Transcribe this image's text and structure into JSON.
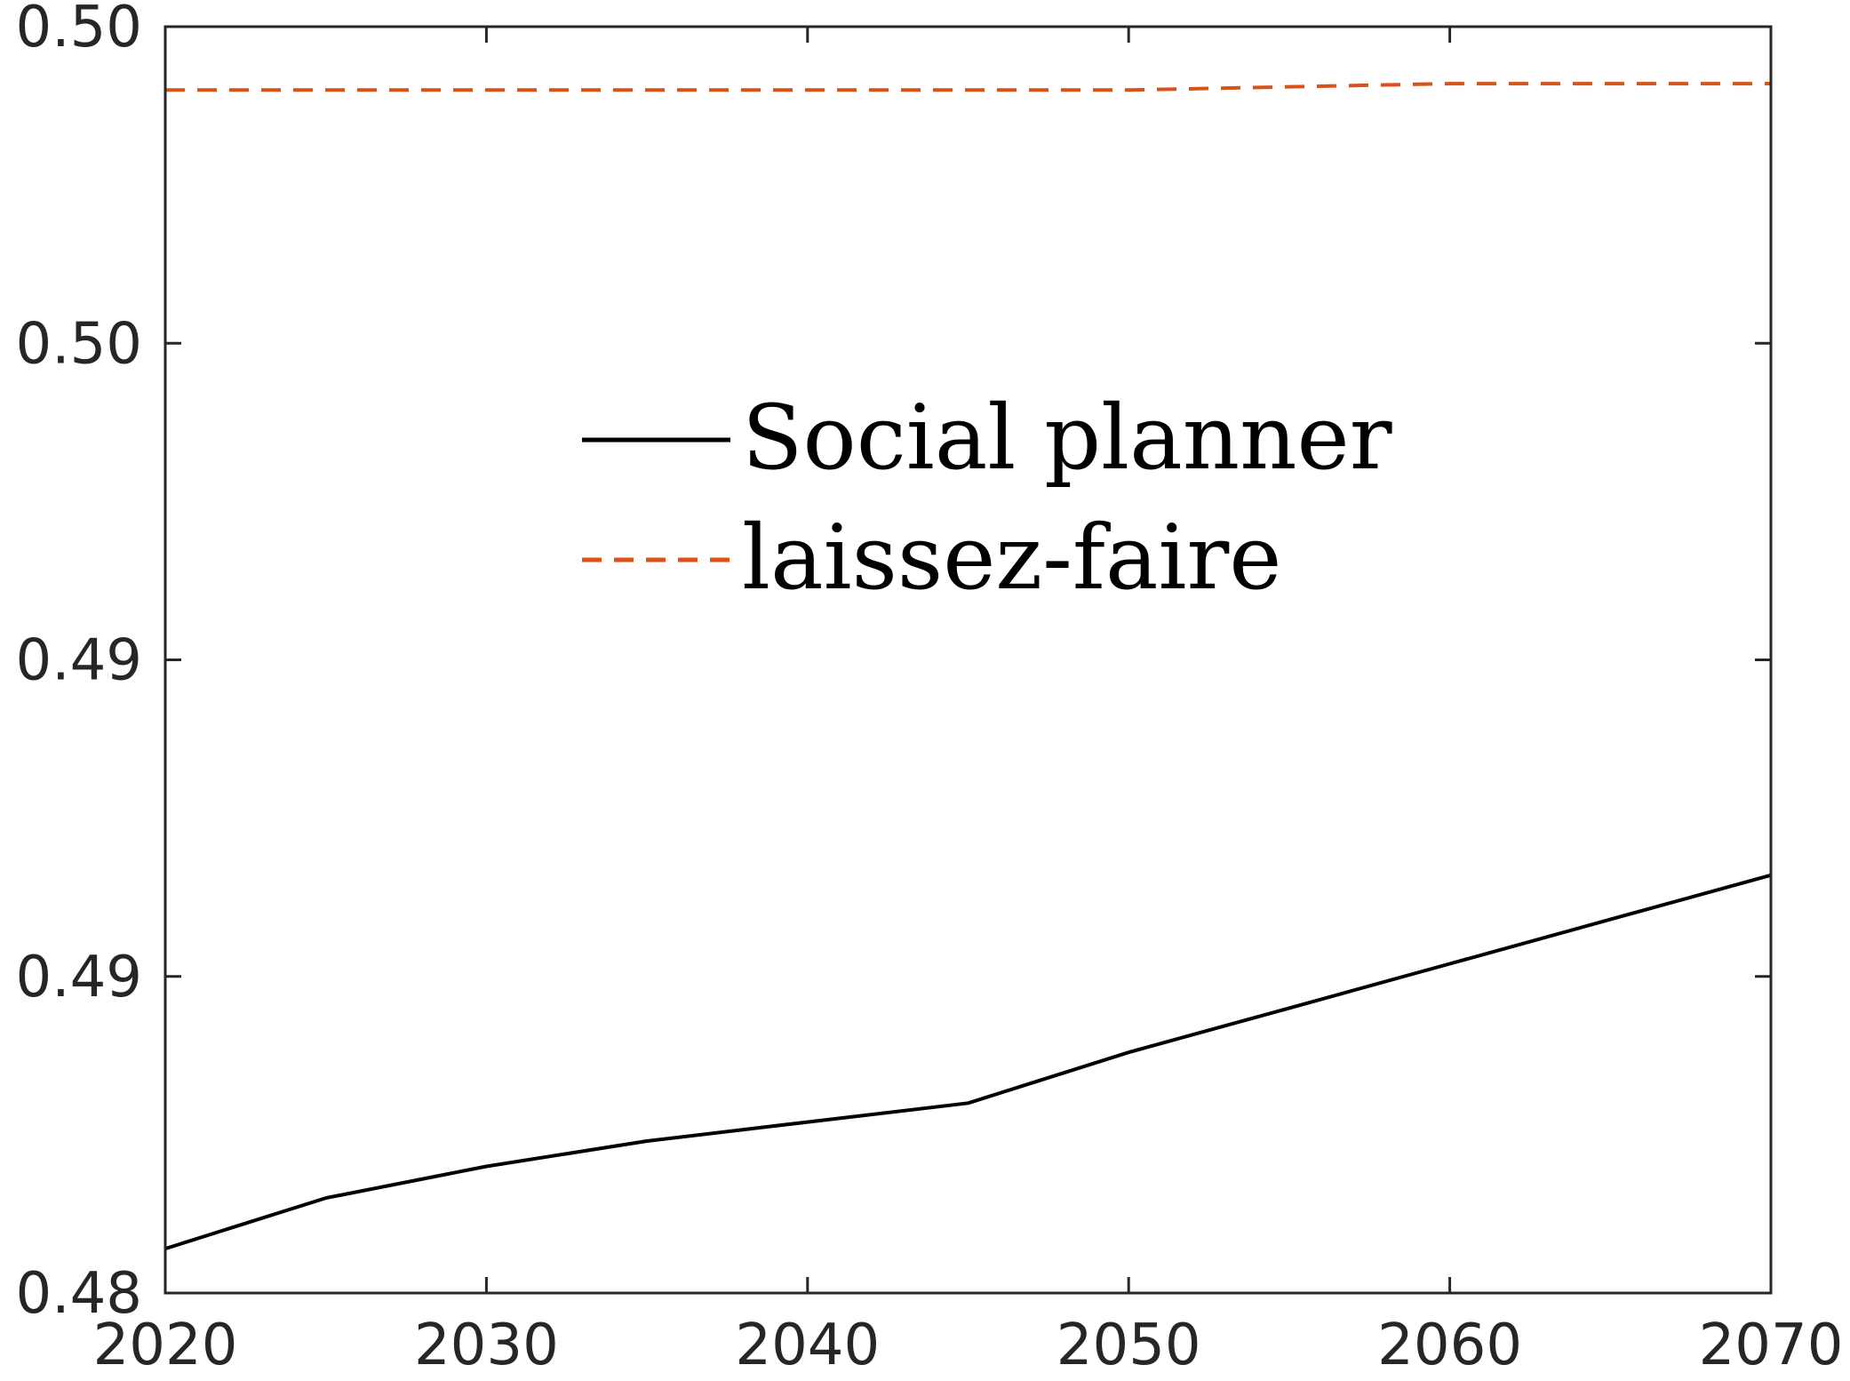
{
  "chart_data": {
    "type": "line",
    "title": "",
    "xlabel": "",
    "ylabel": "",
    "xlim": [
      2020,
      2070
    ],
    "ylim": [
      0.48,
      0.5
    ],
    "x_ticks": [
      2020,
      2030,
      2040,
      2050,
      2060,
      2070
    ],
    "x_tick_labels": [
      "2020",
      "2030",
      "2040",
      "2050",
      "2060",
      "2070"
    ],
    "y_ticks": [
      0.48,
      0.485,
      0.49,
      0.495,
      0.5
    ],
    "y_tick_labels": [
      "0.48",
      "0.49",
      "0.49",
      "0.50",
      "0.50"
    ],
    "grid": false,
    "box": true,
    "legend_position": "upper-center",
    "series": [
      {
        "name": "Social planner",
        "color": "#000000",
        "line_style": "solid",
        "x": [
          2020,
          2025,
          2030,
          2035,
          2040,
          2045,
          2050,
          2055,
          2060,
          2065,
          2070
        ],
        "values": [
          0.4807,
          0.4815,
          0.482,
          0.4824,
          0.4827,
          0.483,
          0.4838,
          0.4845,
          0.4852,
          0.4859,
          0.4866
        ]
      },
      {
        "name": "laissez-faire",
        "color": "#D95319",
        "line_style": "dashed",
        "x": [
          2020,
          2030,
          2040,
          2050,
          2060,
          2070
        ],
        "values": [
          0.499,
          0.499,
          0.499,
          0.499,
          0.4991,
          0.4991
        ]
      }
    ]
  }
}
